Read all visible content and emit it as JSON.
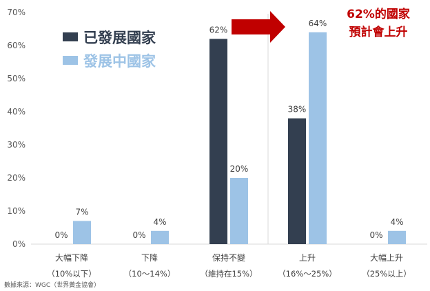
{
  "chart_data": {
    "type": "bar",
    "categories": [
      {
        "line1": "大幅下降",
        "line2": "（10%以下）"
      },
      {
        "line1": "下降",
        "line2": "（10～14%）"
      },
      {
        "line1": "保持不變",
        "line2": "（維持在15%）"
      },
      {
        "line1": "上升",
        "line2": "（16%～25%）"
      },
      {
        "line1": "大幅上升",
        "line2": "（25%以上）"
      }
    ],
    "series": [
      {
        "name": "已發展國家",
        "color": "#333f50",
        "values": [
          0,
          0,
          62,
          38,
          0
        ],
        "labels": [
          "0%",
          "0%",
          "62%",
          "38%",
          "0%"
        ]
      },
      {
        "name": "發展中國家",
        "color": "#9dc3e6",
        "values": [
          7,
          4,
          20,
          64,
          4
        ],
        "labels": [
          "7%",
          "4%",
          "20%",
          "64%",
          "4%"
        ]
      }
    ],
    "ylim": [
      0,
      70
    ],
    "yticks": [
      "0%",
      "10%",
      "20%",
      "30%",
      "40%",
      "50%",
      "60%",
      "70%"
    ],
    "legend_position": "top-left",
    "grid": false,
    "annotation": {
      "line1": "62%的國家",
      "line2": "預計會上升",
      "color": "#c00000",
      "arrow_color": "#c00000"
    },
    "source": "數據來源：WGC（世界黃金協會）"
  }
}
